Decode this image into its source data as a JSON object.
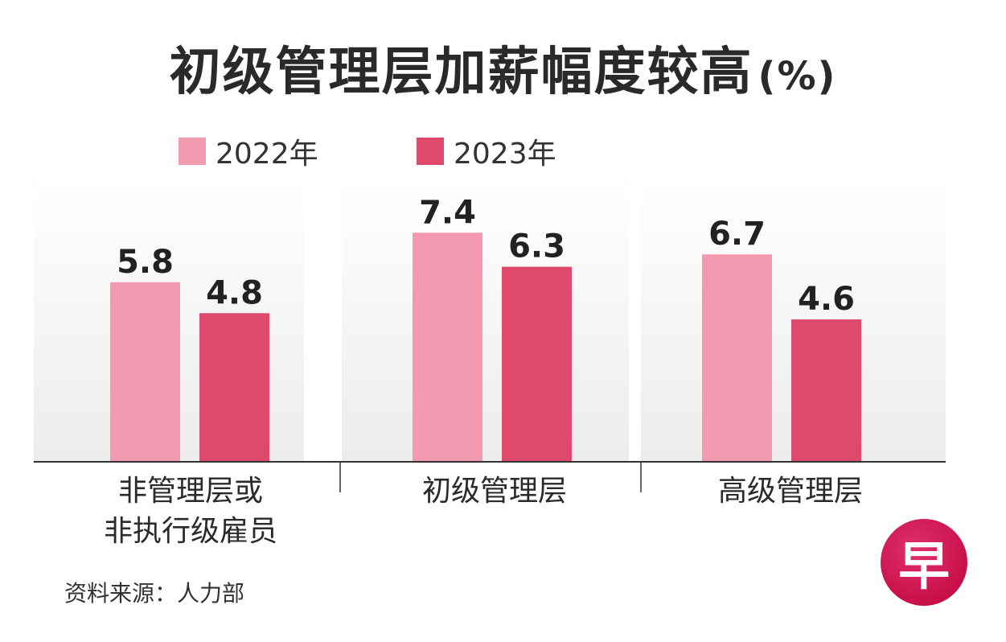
{
  "title": "初级管理层加薪幅度较高",
  "title_unit": "(%)",
  "colors": {
    "series_2022": "#f399b2",
    "series_2023": "#df4a6c",
    "axis": "#333333"
  },
  "chart_data": {
    "type": "bar",
    "title": "初级管理层加薪幅度较高(%)",
    "categories": [
      "非管理层或非执行级雇员",
      "初级管理层",
      "高级管理层"
    ],
    "category_lines": [
      [
        "非管理层或",
        "非执行级雇员"
      ],
      [
        "初级管理层"
      ],
      [
        "高级管理层"
      ]
    ],
    "series": [
      {
        "name": "2022年",
        "values": [
          5.8,
          7.4,
          6.7
        ],
        "labels": [
          "5.8",
          "7.4",
          "6.7"
        ]
      },
      {
        "name": "2023年",
        "values": [
          4.8,
          6.3,
          4.6
        ],
        "labels": [
          "4.8",
          "6.3",
          "4.6"
        ]
      }
    ],
    "ylim": [
      0,
      9.2
    ],
    "xlabel": "",
    "ylabel": "",
    "legend_position": "top-left"
  },
  "source": "资料来源：人力部",
  "logo_text": "早"
}
